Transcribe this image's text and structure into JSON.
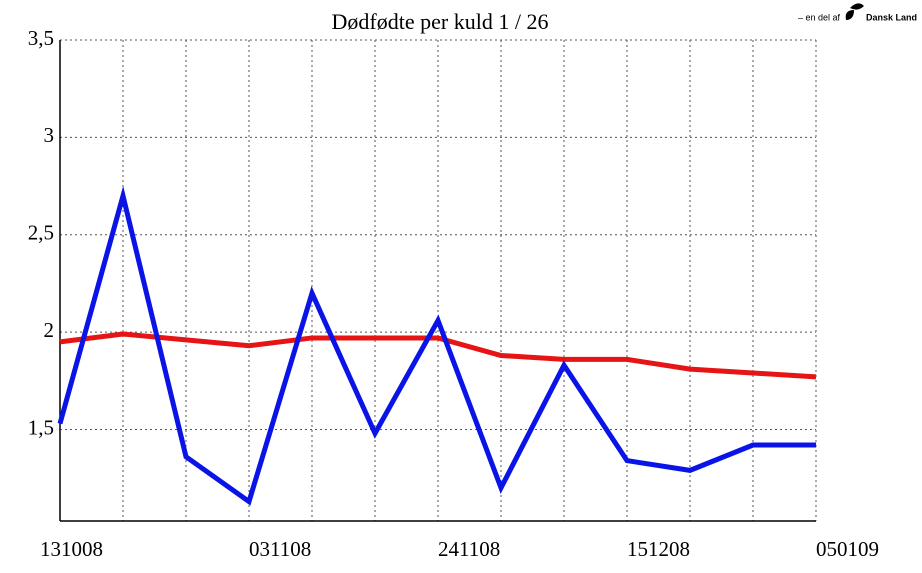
{
  "chart_data": {
    "type": "line",
    "title": "Dødfødte per kuld   1 / 26",
    "logo": {
      "prefix": "– en del af",
      "name": "Dansk Land"
    },
    "categories": [
      "131008",
      null,
      null,
      "031108",
      null,
      null,
      "241108",
      null,
      null,
      "151208",
      null,
      null,
      "050109"
    ],
    "series": [
      {
        "color": "#0a14e6",
        "values": [
          1.53,
          2.7,
          1.36,
          1.13,
          2.2,
          1.48,
          2.06,
          1.2,
          1.83,
          1.34,
          1.29,
          1.42,
          1.42
        ]
      },
      {
        "color": "#e61414",
        "values": [
          1.95,
          1.99,
          1.96,
          1.93,
          1.97,
          1.97,
          1.97,
          1.88,
          1.86,
          1.86,
          1.81,
          1.79,
          1.77
        ]
      }
    ],
    "ylim": [
      1.03,
      3.5
    ],
    "yticks": [
      {
        "value": 1.5,
        "label": "1,5"
      },
      2,
      {
        "value": 2.5,
        "label": "2,5"
      },
      3,
      {
        "value": 3.5,
        "label": "3,5"
      }
    ],
    "grid": true
  }
}
